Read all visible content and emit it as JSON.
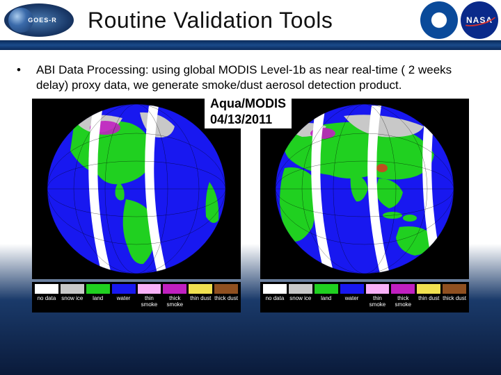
{
  "header": {
    "goes_label": "GOES-R",
    "title": "Routine Validation Tools",
    "nasa_text": "NASA"
  },
  "bullet": {
    "marker": "•",
    "text": " ABI Data Processing: using global MODIS Level-1b as near real-time ( 2 weeks delay) proxy data, we generate smoke/dust aerosol detection product."
  },
  "caption": {
    "line1": "Aqua/MODIS",
    "line2": "04/13/2011"
  },
  "legend": {
    "items": [
      {
        "color": "#ffffff",
        "label": "no data"
      },
      {
        "color": "#c8c8c8",
        "label": "snow ice"
      },
      {
        "color": "#20d020",
        "label": "land"
      },
      {
        "color": "#1818f0",
        "label": "water"
      },
      {
        "color": "#f8b0f8",
        "label": "thin smoke"
      },
      {
        "color": "#c020c0",
        "label": "thick smoke"
      },
      {
        "color": "#f0e050",
        "label": "thin dust"
      },
      {
        "color": "#905020",
        "label": "thick dust"
      }
    ]
  },
  "globes": {
    "ocean_color": "#1818f0",
    "land_color": "#20d020",
    "snow_color": "#c8c8c8",
    "smoke_color": "#c020c0",
    "gap_color": "#ffffff",
    "outline_color": "#000000",
    "background": "#000000"
  }
}
